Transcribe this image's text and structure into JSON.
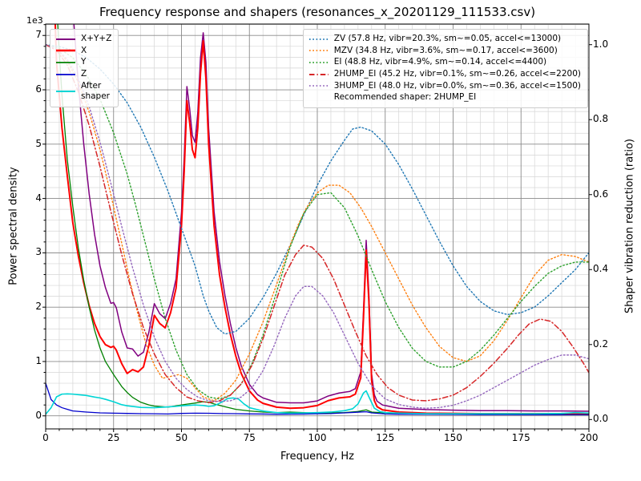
{
  "chart_data": {
    "type": "line",
    "title": "Frequency response and shapers (resonances_x_20201129_111533.csv)",
    "xlabel": "Frequency, Hz",
    "ylabel_left": "Power spectral density",
    "ylabel_right": "Shaper vibration reduction (ratio)",
    "offset_label": "1e3",
    "xlim": [
      0,
      200
    ],
    "ylim_left": [
      -240,
      7210
    ],
    "ylim_right": [
      -0.025,
      1.055
    ],
    "xticks": [
      0,
      25,
      50,
      75,
      100,
      125,
      150,
      175,
      200
    ],
    "yticks_left": [
      0,
      1000,
      2000,
      3000,
      4000,
      5000,
      6000,
      7000
    ],
    "yticks_right": [
      0.0,
      0.2,
      0.4,
      0.6,
      0.8,
      1.0
    ],
    "x_minor_step": 5,
    "y_left_minor_step": 200,
    "grid": {
      "major": true,
      "minor": true,
      "major_color": "#8a8a8a",
      "minor_color": "#d6d6d6"
    },
    "legend_left_position": "upper left",
    "legend_right_position": "upper right",
    "recommended_note": "Recommended shaper: 2HUMP_EI",
    "psd_series": [
      {
        "name": "X+Y+Z",
        "label": "X+Y+Z",
        "color": "#800080",
        "style": "solid",
        "width": 1.5,
        "axis": "left",
        "x": [
          0,
          2,
          4,
          6,
          8,
          10,
          12,
          14,
          16,
          18,
          20,
          22,
          24,
          25,
          26,
          28,
          30,
          32,
          34,
          36,
          38,
          40,
          42,
          44,
          46,
          48,
          50,
          51,
          52,
          53,
          54,
          55,
          56,
          57,
          58,
          59,
          60,
          62,
          64,
          66,
          68,
          70,
          72,
          75,
          78,
          80,
          85,
          90,
          95,
          100,
          104,
          108,
          112,
          114,
          116,
          117,
          118,
          119,
          120,
          121,
          122,
          124,
          127,
          130,
          140,
          150,
          160,
          170,
          180,
          190,
          200
        ],
        "y": [
          29000,
          20700,
          15800,
          12100,
          9700,
          7480,
          6120,
          5010,
          4090,
          3340,
          2760,
          2360,
          2070,
          2085,
          1990,
          1545,
          1250,
          1230,
          1100,
          1170,
          1540,
          2065,
          1880,
          1790,
          2070,
          2520,
          3745,
          4760,
          6060,
          5660,
          5160,
          5030,
          5580,
          6590,
          7050,
          6500,
          5295,
          3760,
          2840,
          2220,
          1700,
          1260,
          920,
          580,
          390,
          330,
          250,
          240,
          240,
          275,
          365,
          420,
          450,
          500,
          810,
          1930,
          3230,
          2240,
          770,
          390,
          270,
          200,
          170,
          140,
          115,
          105,
          95,
          95,
          90,
          90,
          85
        ]
      },
      {
        "name": "X",
        "label": "X",
        "color": "#ff0000",
        "style": "solid",
        "width": 2.0,
        "axis": "left",
        "x": [
          0,
          1,
          2,
          4,
          6,
          8,
          10,
          12,
          14,
          16,
          18,
          20,
          22,
          24,
          25,
          26,
          28,
          30,
          32,
          34,
          36,
          38,
          40,
          42,
          44,
          46,
          48,
          50,
          51,
          52,
          53,
          54,
          55,
          56,
          57,
          58,
          59,
          60,
          62,
          64,
          66,
          68,
          70,
          72,
          75,
          78,
          80,
          85,
          90,
          95,
          100,
          104,
          108,
          112,
          114,
          116,
          117,
          118,
          119,
          120,
          121,
          122,
          124,
          127,
          130,
          140,
          150,
          160,
          170,
          180,
          190,
          200
        ],
        "y": [
          18000,
          13000,
          9500,
          6500,
          5300,
          4400,
          3550,
          2950,
          2450,
          2030,
          1700,
          1460,
          1310,
          1260,
          1280,
          1210,
          960,
          780,
          850,
          810,
          900,
          1300,
          1850,
          1700,
          1620,
          1900,
          2350,
          3500,
          4500,
          5800,
          5400,
          4900,
          4750,
          5300,
          6300,
          6900,
          6200,
          5000,
          3500,
          2600,
          2000,
          1500,
          1100,
          780,
          460,
          290,
          230,
          160,
          140,
          150,
          190,
          280,
          330,
          350,
          400,
          700,
          1800,
          3050,
          2100,
          650,
          280,
          170,
          110,
          90,
          70,
          50,
          45,
          40,
          40,
          40,
          40,
          35
        ]
      },
      {
        "name": "Y",
        "label": "Y",
        "color": "#008000",
        "style": "solid",
        "width": 1.3,
        "axis": "left",
        "x": [
          0,
          2,
          4,
          5,
          6,
          8,
          10,
          12,
          14,
          16,
          18,
          20,
          22,
          25,
          28,
          30,
          32,
          35,
          38,
          40,
          45,
          50,
          52,
          55,
          58,
          60,
          62,
          65,
          70,
          75,
          80,
          85,
          90,
          95,
          100,
          110,
          115,
          118,
          120,
          130,
          140,
          150,
          160,
          170,
          180,
          190,
          200
        ],
        "y": [
          13000,
          9500,
          7600,
          6700,
          5900,
          4700,
          3850,
          3100,
          2500,
          2000,
          1580,
          1250,
          1000,
          760,
          540,
          430,
          340,
          250,
          200,
          180,
          160,
          200,
          215,
          235,
          260,
          250,
          220,
          180,
          120,
          90,
          70,
          60,
          70,
          60,
          50,
          60,
          80,
          110,
          70,
          40,
          30,
          30,
          25,
          25,
          20,
          20,
          20
        ]
      },
      {
        "name": "Z",
        "label": "Z",
        "color": "#0000cd",
        "style": "solid",
        "width": 1.3,
        "axis": "left",
        "x": [
          0,
          2,
          4,
          6,
          8,
          10,
          15,
          20,
          25,
          30,
          35,
          40,
          45,
          50,
          55,
          60,
          65,
          70,
          75,
          80,
          85,
          90,
          95,
          100,
          105,
          110,
          114,
          118,
          120,
          125,
          130,
          140,
          150,
          160,
          170,
          180,
          190,
          200
        ],
        "y": [
          600,
          300,
          200,
          150,
          120,
          90,
          70,
          55,
          50,
          45,
          40,
          38,
          35,
          45,
          50,
          48,
          42,
          40,
          36,
          34,
          30,
          32,
          34,
          38,
          42,
          55,
          65,
          75,
          55,
          35,
          30,
          28,
          25,
          22,
          22,
          20,
          20,
          20
        ]
      },
      {
        "name": "After shaper",
        "label": "After\nshaper",
        "color": "#00d5d5",
        "style": "solid",
        "width": 1.6,
        "axis": "left",
        "x": [
          0,
          2,
          4,
          6,
          8,
          10,
          12,
          15,
          18,
          20,
          22,
          25,
          28,
          30,
          35,
          40,
          45,
          48,
          50,
          52,
          55,
          58,
          60,
          62,
          65,
          67,
          69,
          71,
          73,
          75,
          80,
          85,
          90,
          95,
          100,
          105,
          110,
          113,
          115,
          117,
          118,
          119,
          121,
          123,
          125,
          130,
          140,
          150,
          160,
          170,
          180,
          190,
          195,
          200
        ],
        "y": [
          30,
          150,
          350,
          400,
          405,
          400,
          390,
          375,
          345,
          330,
          305,
          260,
          205,
          185,
          155,
          150,
          165,
          175,
          185,
          190,
          200,
          190,
          175,
          185,
          255,
          320,
          330,
          310,
          220,
          150,
          90,
          60,
          50,
          55,
          60,
          70,
          95,
          130,
          220,
          420,
          460,
          350,
          140,
          80,
          60,
          50,
          40,
          40,
          40,
          40,
          40,
          45,
          60,
          50
        ]
      }
    ],
    "shaper_series": [
      {
        "name": "ZV",
        "label": "ZV (57.8 Hz, vibr=20.3%, sm~=0.05, accel<=13000)",
        "color": "#1f77b4",
        "style": "dotted",
        "width": 1.4,
        "axis": "right",
        "x": [
          0,
          5,
          10,
          15,
          20,
          25,
          30,
          35,
          40,
          45,
          50,
          55,
          58,
          60,
          63,
          66,
          70,
          75,
          80,
          85,
          90,
          95,
          100,
          105,
          110,
          113,
          116,
          120,
          125,
          130,
          135,
          140,
          145,
          150,
          155,
          160,
          165,
          170,
          175,
          180,
          185,
          190,
          195,
          200
        ],
        "y": [
          1.0,
          0.995,
          0.985,
          0.965,
          0.935,
          0.895,
          0.845,
          0.78,
          0.7,
          0.61,
          0.51,
          0.41,
          0.33,
          0.29,
          0.245,
          0.228,
          0.235,
          0.27,
          0.325,
          0.39,
          0.465,
          0.545,
          0.625,
          0.69,
          0.745,
          0.775,
          0.78,
          0.77,
          0.735,
          0.68,
          0.615,
          0.545,
          0.475,
          0.41,
          0.355,
          0.315,
          0.29,
          0.28,
          0.285,
          0.3,
          0.33,
          0.365,
          0.4,
          0.445
        ]
      },
      {
        "name": "MZV",
        "label": "MZV (34.8 Hz, vibr=3.6%, sm~=0.17, accel<=3600)",
        "color": "#ff7f0e",
        "style": "dotted",
        "width": 1.4,
        "axis": "right",
        "x": [
          0,
          4,
          8,
          12,
          16,
          20,
          24,
          28,
          31,
          34,
          37,
          40,
          43,
          46,
          49,
          52,
          55,
          58,
          62,
          66,
          70,
          75,
          80,
          85,
          90,
          93,
          96,
          100,
          104,
          108,
          112,
          116,
          120,
          125,
          130,
          135,
          140,
          145,
          150,
          155,
          160,
          165,
          170,
          175,
          180,
          185,
          190,
          195,
          200
        ],
        "y": [
          1.0,
          0.99,
          0.955,
          0.9,
          0.82,
          0.72,
          0.6,
          0.47,
          0.37,
          0.28,
          0.2,
          0.145,
          0.11,
          0.115,
          0.12,
          0.11,
          0.085,
          0.06,
          0.05,
          0.07,
          0.105,
          0.175,
          0.26,
          0.36,
          0.465,
          0.52,
          0.565,
          0.605,
          0.625,
          0.625,
          0.605,
          0.565,
          0.515,
          0.445,
          0.375,
          0.305,
          0.245,
          0.195,
          0.165,
          0.155,
          0.17,
          0.21,
          0.265,
          0.325,
          0.385,
          0.425,
          0.44,
          0.435,
          0.42
        ]
      },
      {
        "name": "EI",
        "label": "EI (48.8 Hz, vibr=4.9%, sm~=0.14, accel<=4400)",
        "color": "#2ca02c",
        "style": "dotted",
        "width": 1.4,
        "axis": "right",
        "x": [
          0,
          5,
          10,
          15,
          20,
          25,
          30,
          33,
          36,
          40,
          44,
          48,
          52,
          56,
          60,
          64,
          68,
          72,
          76,
          80,
          85,
          90,
          95,
          100,
          105,
          110,
          115,
          120,
          125,
          130,
          135,
          140,
          145,
          150,
          155,
          160,
          165,
          170,
          175,
          180,
          185,
          190,
          195,
          200
        ],
        "y": [
          1.0,
          0.99,
          0.965,
          0.92,
          0.855,
          0.765,
          0.655,
          0.575,
          0.49,
          0.375,
          0.27,
          0.185,
          0.12,
          0.08,
          0.06,
          0.055,
          0.065,
          0.095,
          0.15,
          0.225,
          0.34,
          0.46,
          0.55,
          0.6,
          0.605,
          0.565,
          0.49,
          0.4,
          0.315,
          0.245,
          0.19,
          0.155,
          0.14,
          0.14,
          0.155,
          0.185,
          0.225,
          0.27,
          0.315,
          0.355,
          0.39,
          0.41,
          0.42,
          0.42
        ]
      },
      {
        "name": "2HUMP_EI",
        "label": "2HUMP_EI (45.2 Hz, vibr=0.1%, sm~=0.26, accel<=2200)",
        "color": "#d62728",
        "style": "dashdot",
        "width": 1.5,
        "axis": "right",
        "x": [
          0,
          4,
          8,
          12,
          16,
          20,
          24,
          28,
          32,
          36,
          40,
          44,
          48,
          52,
          56,
          60,
          64,
          68,
          72,
          76,
          80,
          84,
          88,
          92,
          95,
          98,
          102,
          106,
          110,
          114,
          118,
          122,
          126,
          130,
          135,
          140,
          145,
          150,
          155,
          160,
          165,
          170,
          174,
          178,
          182,
          186,
          190,
          194,
          198,
          200
        ],
        "y": [
          1.0,
          0.985,
          0.945,
          0.875,
          0.785,
          0.675,
          0.555,
          0.44,
          0.335,
          0.245,
          0.175,
          0.12,
          0.085,
          0.06,
          0.05,
          0.045,
          0.05,
          0.065,
          0.095,
          0.145,
          0.215,
          0.3,
          0.385,
          0.44,
          0.465,
          0.46,
          0.43,
          0.375,
          0.305,
          0.235,
          0.17,
          0.12,
          0.085,
          0.065,
          0.052,
          0.05,
          0.055,
          0.065,
          0.085,
          0.115,
          0.15,
          0.19,
          0.225,
          0.255,
          0.268,
          0.262,
          0.235,
          0.195,
          0.15,
          0.125
        ]
      },
      {
        "name": "3HUMP_EI",
        "label": "3HUMP_EI (48.0 Hz, vibr=0.0%, sm~=0.36, accel<=1500)",
        "color": "#9467bd",
        "style": "dotted",
        "width": 1.4,
        "axis": "right",
        "x": [
          0,
          4,
          8,
          12,
          16,
          20,
          24,
          28,
          32,
          36,
          40,
          44,
          48,
          52,
          56,
          60,
          64,
          68,
          72,
          76,
          80,
          84,
          88,
          92,
          95,
          98,
          102,
          106,
          110,
          115,
          120,
          125,
          130,
          135,
          140,
          145,
          150,
          155,
          160,
          165,
          170,
          175,
          180,
          185,
          190,
          195,
          200
        ],
        "y": [
          1.0,
          0.99,
          0.96,
          0.91,
          0.835,
          0.74,
          0.63,
          0.515,
          0.405,
          0.305,
          0.22,
          0.155,
          0.11,
          0.08,
          0.06,
          0.05,
          0.048,
          0.05,
          0.06,
          0.085,
          0.13,
          0.195,
          0.27,
          0.33,
          0.355,
          0.355,
          0.33,
          0.285,
          0.225,
          0.15,
          0.09,
          0.055,
          0.04,
          0.033,
          0.03,
          0.032,
          0.038,
          0.05,
          0.065,
          0.085,
          0.105,
          0.125,
          0.145,
          0.16,
          0.172,
          0.172,
          0.162
        ]
      }
    ]
  }
}
